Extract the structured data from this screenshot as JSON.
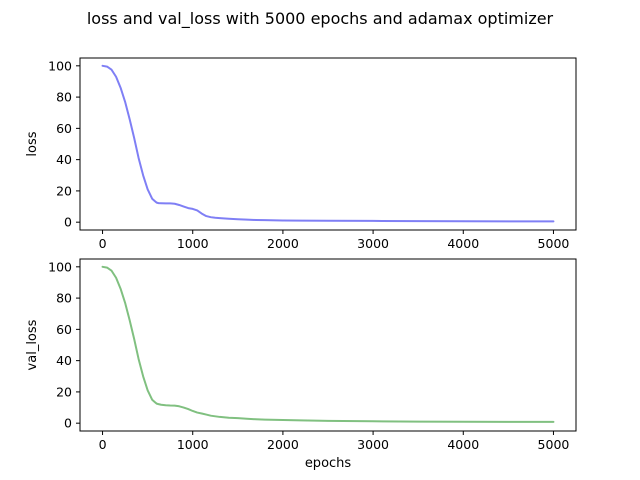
{
  "figure": {
    "title": "loss and val_loss with 5000 epochs and adamax optimizer"
  },
  "chart_data": [
    {
      "type": "line",
      "title": "",
      "xlabel": "",
      "ylabel": "loss",
      "xlim": [
        -250,
        5250
      ],
      "ylim": [
        -5,
        105
      ],
      "xticks": [
        0,
        1000,
        2000,
        3000,
        4000,
        5000
      ],
      "yticks": [
        0,
        20,
        40,
        60,
        80,
        100
      ],
      "xtick_labels": [
        "0",
        "1000",
        "2000",
        "3000",
        "4000",
        "5000"
      ],
      "ytick_labels": [
        "0",
        "20",
        "40",
        "60",
        "80",
        "100"
      ],
      "grid": false,
      "legend": "none",
      "series": [
        {
          "color": "#7f7ff5",
          "x": [
            0,
            50,
            100,
            150,
            200,
            250,
            300,
            350,
            400,
            450,
            500,
            550,
            580,
            600,
            620,
            650,
            700,
            750,
            800,
            850,
            900,
            950,
            1000,
            1050,
            1100,
            1150,
            1200,
            1250,
            1300,
            1400,
            1500,
            1600,
            1700,
            1800,
            2000,
            2200,
            2500,
            3000,
            3500,
            4000,
            4500,
            5000
          ],
          "y": [
            100,
            99.5,
            97.5,
            93,
            86,
            77,
            66,
            54,
            41,
            30,
            21,
            15,
            13.5,
            12.5,
            12.2,
            12.1,
            12,
            12,
            11.8,
            11,
            10,
            9,
            8.5,
            7.5,
            5.5,
            3.9,
            3.2,
            2.8,
            2.6,
            2.2,
            1.9,
            1.6,
            1.4,
            1.3,
            1.1,
            1.0,
            0.9,
            0.8,
            0.7,
            0.6,
            0.55,
            0.5
          ]
        }
      ]
    },
    {
      "type": "line",
      "title": "",
      "xlabel": "epochs",
      "ylabel": "val_loss",
      "xlim": [
        -250,
        5250
      ],
      "ylim": [
        -5,
        105
      ],
      "xticks": [
        0,
        1000,
        2000,
        3000,
        4000,
        5000
      ],
      "yticks": [
        0,
        20,
        40,
        60,
        80,
        100
      ],
      "xtick_labels": [
        "0",
        "1000",
        "2000",
        "3000",
        "4000",
        "5000"
      ],
      "ytick_labels": [
        "0",
        "20",
        "40",
        "60",
        "80",
        "100"
      ],
      "grid": false,
      "legend": "none",
      "series": [
        {
          "color": "#80c080",
          "x": [
            0,
            50,
            100,
            150,
            200,
            250,
            300,
            350,
            400,
            450,
            500,
            550,
            580,
            600,
            620,
            650,
            700,
            750,
            800,
            850,
            900,
            950,
            1000,
            1050,
            1100,
            1150,
            1200,
            1300,
            1400,
            1500,
            1600,
            1700,
            1800,
            2000,
            2200,
            2500,
            3000,
            3500,
            4000,
            4500,
            5000
          ],
          "y": [
            100,
            99.5,
            97.5,
            93,
            86,
            77,
            66,
            54,
            41,
            30,
            21,
            15,
            13.5,
            12.5,
            12.2,
            11.8,
            11.5,
            11.3,
            11.2,
            10.8,
            10,
            9,
            7.8,
            6.8,
            6.2,
            5.5,
            4.8,
            4.0,
            3.5,
            3.2,
            2.8,
            2.5,
            2.3,
            2.0,
            1.8,
            1.5,
            1.2,
            1.0,
            0.9,
            0.85,
            0.8
          ]
        }
      ]
    }
  ]
}
